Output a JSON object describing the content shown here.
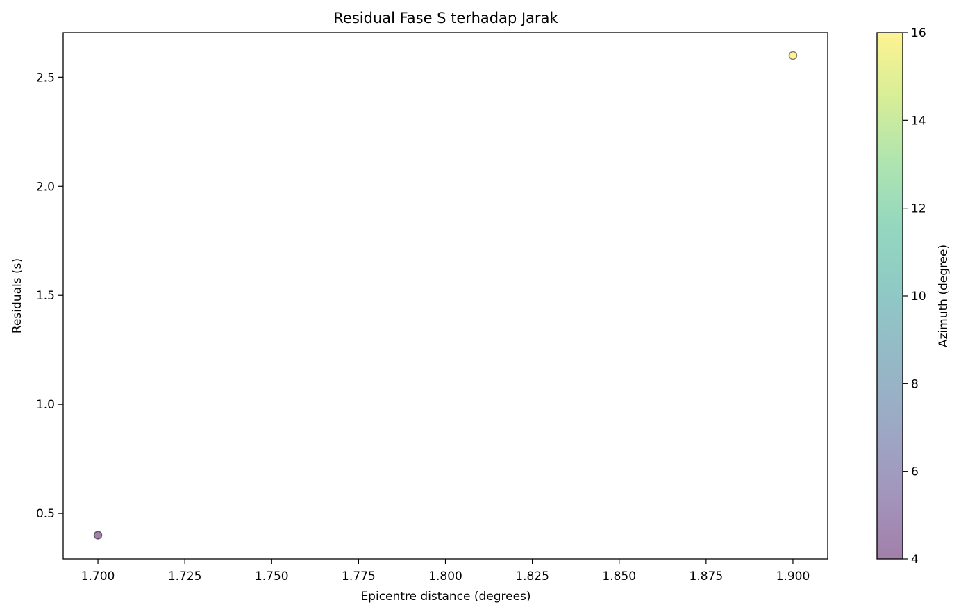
{
  "chart_data": {
    "type": "scatter",
    "title": "Residual Fase S terhadap Jarak",
    "xlabel": "Epicentre distance (degrees)",
    "ylabel": "Residuals (s)",
    "xlim": [
      1.69,
      1.91
    ],
    "ylim": [
      0.29,
      2.705
    ],
    "x_ticks": [
      1.7,
      1.725,
      1.75,
      1.775,
      1.8,
      1.825,
      1.85,
      1.875,
      1.9
    ],
    "x_tick_labels": [
      "1.700",
      "1.725",
      "1.750",
      "1.775",
      "1.800",
      "1.825",
      "1.850",
      "1.875",
      "1.900"
    ],
    "y_ticks": [
      0.5,
      1.0,
      1.5,
      2.0,
      2.5
    ],
    "y_tick_labels": [
      "0.5",
      "1.0",
      "1.5",
      "2.0",
      "2.5"
    ],
    "grid": false,
    "points": [
      {
        "x": 1.7,
        "y": 0.4,
        "azimuth": 4
      },
      {
        "x": 1.9,
        "y": 2.6,
        "azimuth": 16
      }
    ],
    "colorbar": {
      "label": "Azimuth (degree)",
      "colormap": "viridis",
      "alpha": 0.5,
      "range": [
        4,
        16
      ],
      "ticks": [
        4,
        6,
        8,
        10,
        12,
        14,
        16
      ],
      "tick_labels": [
        "4",
        "6",
        "8",
        "10",
        "12",
        "14",
        "16"
      ]
    }
  }
}
